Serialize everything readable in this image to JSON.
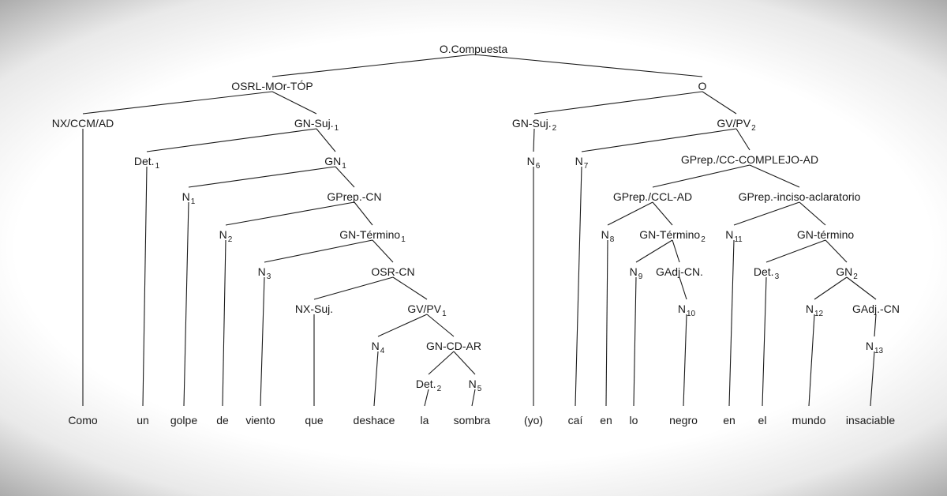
{
  "tree": {
    "nodes": [
      {
        "id": "root",
        "label": "O.Compuesta",
        "sub": ""
      },
      {
        "id": "osrl",
        "label": "OSRL-MOr-TÓP",
        "sub": ""
      },
      {
        "id": "o",
        "label": "O",
        "sub": ""
      },
      {
        "id": "nx_ccm",
        "label": "NX/CCM/AD",
        "sub": ""
      },
      {
        "id": "gnsuj1",
        "label": "GN-Suj.",
        "sub": "1"
      },
      {
        "id": "gnsuj2",
        "label": "GN-Suj.",
        "sub": "2"
      },
      {
        "id": "gvpv2",
        "label": "GV/PV",
        "sub": "2"
      },
      {
        "id": "det1",
        "label": "Det.",
        "sub": "1"
      },
      {
        "id": "gn1",
        "label": "GN",
        "sub": "1"
      },
      {
        "id": "n6",
        "label": "N",
        "sub": "6"
      },
      {
        "id": "n7",
        "label": "N",
        "sub": "7"
      },
      {
        "id": "gprepcc",
        "label": "GPrep./CC-COMPLEJO-AD",
        "sub": ""
      },
      {
        "id": "n1",
        "label": "N",
        "sub": "1"
      },
      {
        "id": "gprepcn",
        "label": "GPrep.-CN",
        "sub": ""
      },
      {
        "id": "gprepccl",
        "label": "GPrep./CCL-AD",
        "sub": ""
      },
      {
        "id": "gprepinc",
        "label": "GPrep.-inciso-aclaratorio",
        "sub": ""
      },
      {
        "id": "n2",
        "label": "N",
        "sub": "2"
      },
      {
        "id": "gnterm1",
        "label": "GN-Término",
        "sub": "1"
      },
      {
        "id": "n8",
        "label": "N",
        "sub": "8"
      },
      {
        "id": "gnterm2",
        "label": "GN-Término",
        "sub": "2"
      },
      {
        "id": "n11",
        "label": "N",
        "sub": "11"
      },
      {
        "id": "gntermino",
        "label": "GN-término",
        "sub": ""
      },
      {
        "id": "n3",
        "label": "N",
        "sub": "3"
      },
      {
        "id": "osrcn",
        "label": "OSR-CN",
        "sub": ""
      },
      {
        "id": "n9",
        "label": "N",
        "sub": "9"
      },
      {
        "id": "gadjcn",
        "label": "GAdj-CN.",
        "sub": ""
      },
      {
        "id": "det3",
        "label": "Det.",
        "sub": "3"
      },
      {
        "id": "gn2",
        "label": "GN",
        "sub": "2"
      },
      {
        "id": "nxsuj",
        "label": "NX-Suj.",
        "sub": ""
      },
      {
        "id": "gvpv1",
        "label": "GV/PV",
        "sub": "1"
      },
      {
        "id": "n10",
        "label": "N",
        "sub": "10"
      },
      {
        "id": "n12",
        "label": "N",
        "sub": "12"
      },
      {
        "id": "gadjcn2",
        "label": "GAdj.-CN",
        "sub": ""
      },
      {
        "id": "n4",
        "label": "N",
        "sub": "4"
      },
      {
        "id": "gncdar",
        "label": "GN-CD-AR",
        "sub": ""
      },
      {
        "id": "n13",
        "label": "N",
        "sub": "13"
      },
      {
        "id": "det2",
        "label": "Det.",
        "sub": "2"
      },
      {
        "id": "n5",
        "label": "N",
        "sub": "5"
      }
    ],
    "words": [
      "Como",
      "un",
      "golpe",
      "de",
      "viento",
      "que",
      "deshace",
      "la",
      "sombra",
      "(yo)",
      "caí",
      "en",
      "lo",
      "negro",
      "en",
      "el",
      "mundo",
      "insaciable"
    ]
  }
}
